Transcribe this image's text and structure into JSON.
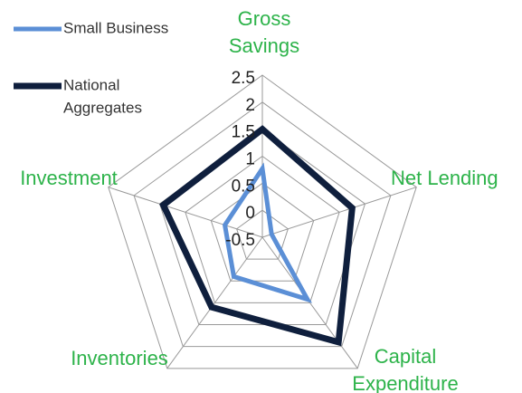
{
  "chart_data": {
    "type": "radar",
    "categories": [
      [
        "Gross",
        "Savings"
      ],
      [
        "Net Lending"
      ],
      [
        "Capital",
        "Expenditure"
      ],
      [
        "Inventories"
      ],
      [
        "Investment"
      ]
    ],
    "series": [
      {
        "name": [
          "Small Business"
        ],
        "color": "#5b8fd6",
        "values": [
          0.77,
          -0.32,
          0.92,
          0.4,
          0.23
        ]
      },
      {
        "name": [
          "National",
          "Aggregates"
        ],
        "color": "#0f1f3d",
        "values": [
          1.5,
          1.25,
          1.9,
          1.1,
          1.43
        ]
      }
    ],
    "rlim": [
      -0.5,
      2.5
    ],
    "rticks": [
      -0.5,
      0,
      0.5,
      1,
      1.5,
      2,
      2.5
    ],
    "label_color": "#2db34a"
  }
}
